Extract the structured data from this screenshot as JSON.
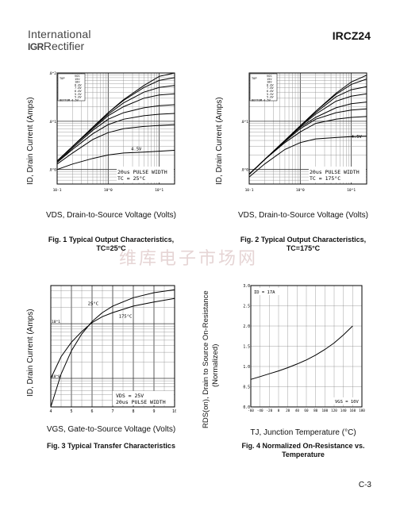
{
  "header": {
    "brand_line1": "International",
    "brand_logo": "IGR",
    "brand_line2": "Rectifier",
    "part_number": "IRCZ24"
  },
  "watermark": "维库电子市场网",
  "page_number": "C-3",
  "figures": [
    {
      "caption_line1": "Fig. 1 Typical Output Characteristics,",
      "caption_line2": "TC=25°C",
      "ylabel": "ID, Drain Current (Amps)",
      "xlabel": "VDS, Drain-to-Source Voltage (Volts)",
      "legend": [
        "VGS",
        "15V",
        "10V",
        "8.0V",
        "7.0V",
        "6.0V",
        "5.5V",
        "5.0V",
        "BOTTOM 4.5V"
      ],
      "legend_top_label": "TOP",
      "note_line1": "20us PULSE WIDTH",
      "note_line2": "TC = 25°C",
      "curve_label": "4.5V",
      "x_ticks": [
        "10-1",
        "10^0",
        "10^1"
      ],
      "y_ticks": [
        "10^0",
        "10^1",
        "10^2"
      ]
    },
    {
      "caption_line1": "Fig. 2 Typical Output Characteristics,",
      "caption_line2": "TC=175°C",
      "ylabel": "ID, Drain Current (Amps)",
      "xlabel": "VDS, Drain-to-Source Voltage (Volts)",
      "legend": [
        "VGS",
        "15V",
        "10V",
        "8.0V",
        "7.0V",
        "6.0V",
        "5.5V",
        "5.0V",
        "BOTTOM 4.5V"
      ],
      "legend_top_label": "TOP",
      "note_line1": "20us PULSE WIDTH",
      "note_line2": "TC = 175°C",
      "curve_label": "4.5V",
      "x_ticks": [
        "10-1",
        "10^0",
        "10^1"
      ],
      "y_ticks": [
        "10^0",
        "10^1"
      ]
    },
    {
      "caption_line1": "Fig. 3 Typical Transfer Characteristics",
      "ylabel": "ID, Drain Current (Amps)",
      "xlabel": "VGS, Gate-to-Source Voltage (Volts)",
      "curve_labels": [
        "25°C",
        "175°C"
      ],
      "note_line1": "VDS = 25V",
      "note_line2": "20us PULSE WIDTH",
      "x_ticks": [
        "4",
        "5",
        "6",
        "7",
        "8",
        "9",
        "10"
      ],
      "y_ticks": [
        "10^0",
        "10^1"
      ]
    },
    {
      "caption_line1": "Fig. 4 Normalized On-Resistance vs.",
      "caption_line2": "Temperature",
      "ylabel_line1": "RDS(on), Drain to Source On-Resistance",
      "ylabel_line2": "(Normalized)",
      "xlabel": "TJ, Junction Temperature (°C)",
      "note_top": "ID = 17A",
      "note_bottom": "VGS = 10V",
      "x_ticks": [
        "-60",
        "-40",
        "-20",
        "0",
        "20",
        "40",
        "60",
        "80",
        "100",
        "120",
        "140",
        "160",
        "180"
      ],
      "y_ticks": [
        "0.0",
        "0.5",
        "1.0",
        "1.5",
        "2.0",
        "2.5",
        "3.0"
      ]
    }
  ],
  "chart_data": [
    {
      "type": "line",
      "x_scale": "log",
      "y_scale": "log",
      "xlim": [
        0.1,
        20
      ],
      "ylim": [
        0.5,
        100
      ],
      "x": [
        0.1,
        0.2,
        0.5,
        1,
        2,
        5,
        10,
        20
      ],
      "series": [
        {
          "name": "15V",
          "values": [
            1.5,
            3,
            7.5,
            15,
            28,
            55,
            85,
            100
          ]
        },
        {
          "name": "10V",
          "values": [
            1.5,
            3,
            7.5,
            15,
            27,
            50,
            70,
            80
          ]
        },
        {
          "name": "8.0V",
          "values": [
            1.5,
            3,
            7.4,
            14,
            24,
            40,
            50,
            55
          ]
        },
        {
          "name": "7.0V",
          "values": [
            1.5,
            3,
            7,
            13,
            20,
            30,
            35,
            37
          ]
        },
        {
          "name": "6.0V",
          "values": [
            1.4,
            2.8,
            6.5,
            11,
            15,
            19,
            21,
            22
          ]
        },
        {
          "name": "5.5V",
          "values": [
            1.4,
            2.6,
            5.5,
            8.5,
            11,
            13,
            14,
            14.5
          ]
        },
        {
          "name": "5.0V",
          "values": [
            1.3,
            2.2,
            4.2,
            5.8,
            7,
            7.8,
            8.2,
            8.5
          ]
        },
        {
          "name": "4.5V",
          "values": [
            1.0,
            1.3,
            1.7,
            2.0,
            2.2,
            2.3,
            2.4,
            2.5
          ]
        }
      ]
    },
    {
      "type": "line",
      "x_scale": "log",
      "y_scale": "log",
      "xlim": [
        0.1,
        20
      ],
      "ylim": [
        0.5,
        100
      ],
      "x": [
        0.1,
        0.2,
        0.5,
        1,
        2,
        5,
        10,
        20
      ],
      "series": [
        {
          "name": "15V",
          "values": [
            0.8,
            1.6,
            4,
            8,
            16,
            38,
            65,
            90
          ]
        },
        {
          "name": "10V",
          "values": [
            0.8,
            1.6,
            4,
            8,
            16,
            36,
            58,
            75
          ]
        },
        {
          "name": "8.0V",
          "values": [
            0.8,
            1.6,
            4,
            8,
            15,
            32,
            45,
            52
          ]
        },
        {
          "name": "7.0V",
          "values": [
            0.8,
            1.6,
            4,
            7.8,
            14,
            26,
            33,
            37
          ]
        },
        {
          "name": "6.0V",
          "values": [
            0.8,
            1.6,
            3.9,
            7.5,
            12,
            19,
            23,
            25
          ]
        },
        {
          "name": "5.5V",
          "values": [
            0.8,
            1.6,
            3.8,
            7,
            11,
            15,
            17,
            18
          ]
        },
        {
          "name": "5.0V",
          "values": [
            0.8,
            1.6,
            3.6,
            6,
            9,
            11,
            12,
            12.5
          ]
        },
        {
          "name": "4.5V",
          "values": [
            0.7,
            1.3,
            2.6,
            3.6,
            4.3,
            4.6,
            4.8,
            4.9
          ]
        }
      ]
    },
    {
      "type": "line",
      "x_scale": "linear",
      "y_scale": "log",
      "xlim": [
        4,
        10
      ],
      "ylim": [
        0.3,
        50
      ],
      "x": [
        4,
        4.5,
        5,
        5.5,
        6,
        6.5,
        7,
        8,
        9,
        10
      ],
      "series": [
        {
          "name": "25°C",
          "values": [
            0.3,
            1.2,
            3.2,
            6.5,
            11,
            16,
            21,
            30,
            37,
            42
          ]
        },
        {
          "name": "175°C",
          "values": [
            1.0,
            2.5,
            4.6,
            7.2,
            10.5,
            13.5,
            16,
            21,
            25,
            29
          ]
        }
      ]
    },
    {
      "type": "line",
      "xlim": [
        -60,
        180
      ],
      "ylim": [
        0,
        3.0
      ],
      "x": [
        -60,
        -40,
        -20,
        0,
        20,
        40,
        60,
        80,
        100,
        120,
        140,
        160
      ],
      "series": [
        {
          "name": "RDS(on)",
          "values": [
            0.68,
            0.75,
            0.82,
            0.89,
            0.97,
            1.06,
            1.16,
            1.28,
            1.42,
            1.58,
            1.78,
            2.0
          ]
        }
      ]
    }
  ]
}
